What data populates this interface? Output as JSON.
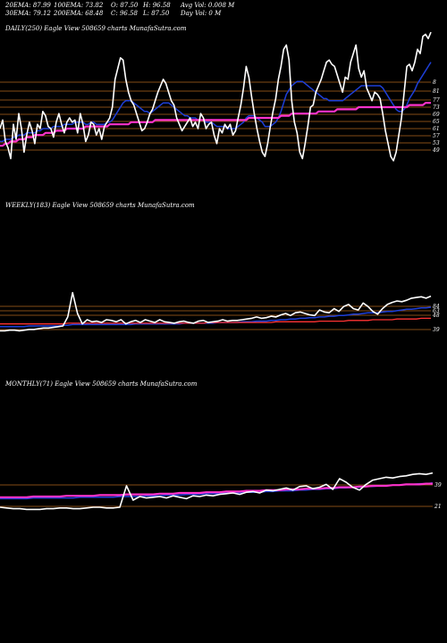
{
  "header": {
    "row1": [
      "20EMA: 87.99",
      "100EMA: 73.82",
      "O: 87.50",
      "H: 96.58",
      "Avg Vol: 0.008 M"
    ],
    "row2": [
      "30EMA: 79.12",
      "200EMA: 68.48",
      "C: 96.58",
      "L: 87.50",
      "Day Vol: 0  M"
    ]
  },
  "colors": {
    "background": "#000000",
    "price": "#ffffff",
    "ema_blue": "#1e3fd8",
    "ema_pink": "#ff33cc",
    "ema_red": "#ff3333",
    "grid": "#b0641e"
  },
  "chart_data": [
    {
      "type": "line",
      "title": "DAILY(250) Eagle  View  508659 charts MunafaSutra.com",
      "y_tick_labels": [
        "8",
        "81",
        "77",
        "73",
        "69",
        "65",
        "61",
        "57",
        "53",
        "49"
      ],
      "grid": true,
      "series": [
        {
          "role": "price",
          "values": [
            55,
            59,
            49,
            46,
            41,
            57,
            50,
            62,
            55,
            44,
            52,
            58,
            54,
            48,
            57,
            55,
            63,
            61,
            56,
            55,
            51,
            58,
            62,
            57,
            53,
            58,
            60,
            58,
            59,
            53,
            62,
            57,
            49,
            52,
            58,
            57,
            52,
            55,
            50,
            56,
            58,
            60,
            65,
            78,
            83,
            88,
            87,
            78,
            72,
            68,
            66,
            62,
            58,
            54,
            55,
            58,
            62,
            64,
            68,
            72,
            75,
            78,
            76,
            72,
            68,
            66,
            60,
            57,
            54,
            56,
            58,
            60,
            56,
            58,
            55,
            62,
            60,
            55,
            57,
            58,
            52,
            48,
            55,
            53,
            57,
            55,
            57,
            52,
            54,
            60,
            66,
            74,
            84,
            79,
            70,
            62,
            55,
            49,
            44,
            42,
            48,
            56,
            63,
            69,
            78,
            84,
            92,
            94,
            87,
            68,
            58,
            53,
            44,
            41,
            48,
            56,
            65,
            66,
            72,
            75,
            78,
            82,
            86,
            87,
            85,
            84,
            80,
            76,
            72,
            79,
            78,
            86,
            90,
            94,
            83,
            79,
            82,
            74,
            71,
            68,
            72,
            71,
            69,
            62,
            54,
            48,
            42,
            40,
            44,
            52,
            60,
            72,
            84,
            85,
            82,
            86,
            92,
            90,
            98,
            99,
            97,
            100
          ]
        },
        {
          "role": "ema-blue",
          "values": [
            49,
            49,
            50,
            50,
            50,
            51,
            51,
            52,
            52,
            52,
            53,
            53,
            53,
            53,
            54,
            54,
            55,
            55,
            55,
            55,
            56,
            56,
            56,
            56,
            57,
            57,
            57,
            57,
            58,
            58,
            58,
            58,
            57,
            57,
            58,
            58,
            57,
            57,
            57,
            57,
            58,
            58,
            59,
            61,
            63,
            65,
            67,
            68,
            68,
            68,
            67,
            66,
            65,
            64,
            63,
            63,
            62,
            63,
            64,
            65,
            66,
            67,
            67,
            67,
            66,
            65,
            64,
            63,
            62,
            61,
            61,
            60,
            60,
            60,
            59,
            59,
            59,
            58,
            58,
            58,
            57,
            56,
            56,
            56,
            56,
            55,
            55,
            55,
            55,
            56,
            57,
            58,
            60,
            61,
            61,
            61,
            60,
            59,
            58,
            56,
            56,
            56,
            57,
            58,
            60,
            63,
            67,
            71,
            73,
            75,
            76,
            77,
            77,
            77,
            76,
            75,
            74,
            73,
            72,
            71,
            70,
            69,
            69,
            68,
            68,
            68,
            68,
            68,
            68,
            69,
            70,
            71,
            72,
            73,
            74,
            75,
            75,
            75,
            75,
            75,
            75,
            75,
            75,
            74,
            72,
            70,
            68,
            66,
            64,
            63,
            63,
            64,
            66,
            69,
            71,
            73,
            76,
            78,
            80,
            82,
            84,
            86
          ]
        },
        {
          "role": "ema-pink",
          "values": [
            47,
            47,
            48,
            48,
            49,
            49,
            49,
            50,
            50,
            50,
            51,
            51,
            51,
            52,
            52,
            52,
            52,
            53,
            53,
            53,
            53,
            54,
            54,
            54,
            54,
            55,
            55,
            55,
            55,
            55,
            55,
            55,
            56,
            56,
            56,
            56,
            56,
            56,
            56,
            56,
            56,
            57,
            57,
            57,
            57,
            57,
            57,
            57,
            57,
            58,
            58,
            58,
            58,
            58,
            58,
            58,
            58,
            58,
            59,
            59,
            59,
            59,
            59,
            59,
            59,
            59,
            59,
            59,
            59,
            59,
            59,
            59,
            59,
            59,
            59,
            59,
            59,
            59,
            59,
            59,
            59,
            59,
            59,
            59,
            59,
            59,
            59,
            59,
            59,
            59,
            59,
            59,
            59,
            60,
            60,
            60,
            60,
            60,
            60,
            60,
            60,
            60,
            60,
            60,
            60,
            61,
            61,
            61,
            61,
            62,
            62,
            62,
            62,
            62,
            62,
            62,
            62,
            62,
            62,
            63,
            63,
            63,
            63,
            63,
            63,
            63,
            64,
            64,
            64,
            64,
            64,
            64,
            64,
            64,
            65,
            65,
            65,
            65,
            65,
            65,
            65,
            65,
            65,
            65,
            65,
            65,
            65,
            65,
            65,
            65,
            65,
            65,
            65,
            66,
            66,
            66,
            66,
            66,
            66,
            67,
            67,
            67
          ]
        }
      ]
    },
    {
      "type": "line",
      "title": "WEEKLY(183) Eagle  View  508659 charts MunafaSutra.com",
      "y_tick_labels": [
        "84",
        "63",
        "48",
        "39"
      ],
      "grid": true,
      "series": [
        {
          "role": "price",
          "values": [
            20,
            20,
            21,
            21,
            20,
            21,
            22,
            22,
            23,
            24,
            24,
            25,
            26,
            27,
            40,
            75,
            45,
            30,
            36,
            33,
            34,
            32,
            36,
            35,
            33,
            36,
            30,
            33,
            35,
            32,
            36,
            34,
            32,
            36,
            33,
            32,
            31,
            33,
            34,
            32,
            31,
            34,
            35,
            32,
            33,
            34,
            36,
            34,
            35,
            35,
            36,
            37,
            38,
            40,
            38,
            39,
            41,
            40,
            43,
            45,
            42,
            46,
            47,
            45,
            43,
            42,
            50,
            47,
            46,
            52,
            48,
            55,
            58,
            52,
            50,
            60,
            55,
            48,
            44,
            52,
            58,
            61,
            63,
            62,
            64,
            67,
            68,
            69,
            67,
            70
          ]
        },
        {
          "role": "ema-blue",
          "values": [
            26,
            26,
            26,
            26,
            26,
            26,
            27,
            27,
            27,
            27,
            27,
            27,
            27,
            28,
            28,
            29,
            29,
            29,
            29,
            29,
            29,
            29,
            29,
            29,
            29,
            29,
            29,
            29,
            30,
            30,
            30,
            30,
            30,
            30,
            30,
            30,
            30,
            30,
            31,
            31,
            31,
            31,
            31,
            31,
            31,
            32,
            32,
            32,
            32,
            32,
            33,
            33,
            33,
            34,
            34,
            34,
            35,
            35,
            36,
            36,
            37,
            37,
            38,
            38,
            39,
            39,
            40,
            40,
            41,
            41,
            42,
            42,
            43,
            44,
            44,
            45,
            46,
            46,
            46,
            47,
            48,
            48,
            49,
            50,
            51,
            51,
            52,
            53,
            53,
            54
          ]
        },
        {
          "role": "ema-red",
          "values": [
            30,
            30,
            30,
            30,
            30,
            30,
            30,
            30,
            30,
            30,
            30,
            30,
            30,
            30,
            31,
            31,
            31,
            31,
            31,
            31,
            31,
            31,
            31,
            31,
            31,
            31,
            31,
            31,
            31,
            31,
            31,
            31,
            31,
            31,
            31,
            31,
            31,
            31,
            31,
            31,
            31,
            31,
            31,
            32,
            32,
            32,
            32,
            32,
            32,
            32,
            32,
            32,
            32,
            32,
            32,
            32,
            32,
            33,
            33,
            33,
            33,
            33,
            33,
            33,
            33,
            33,
            34,
            34,
            34,
            34,
            34,
            34,
            35,
            35,
            35,
            35,
            35,
            36,
            36,
            36,
            36,
            36,
            37,
            37,
            37,
            37,
            37,
            38,
            38,
            38
          ]
        }
      ]
    },
    {
      "type": "line",
      "title": "MONTHLY(71) Eagle  View  508659 charts MunafaSutra.com",
      "y_tick_labels": [
        "39",
        "21"
      ],
      "grid": true,
      "series": [
        {
          "role": "price",
          "values": [
            20,
            19,
            18,
            18,
            17,
            17,
            17,
            18,
            18,
            19,
            19,
            18,
            18,
            19,
            20,
            20,
            19,
            19,
            20,
            50,
            30,
            35,
            33,
            34,
            35,
            33,
            36,
            34,
            32,
            36,
            35,
            37,
            36,
            38,
            39,
            40,
            38,
            41,
            42,
            40,
            44,
            43,
            45,
            47,
            44,
            49,
            50,
            46,
            48,
            52,
            45,
            60,
            55,
            48,
            44,
            52,
            58,
            60,
            62,
            61,
            63,
            64,
            66,
            67,
            66,
            68
          ]
        },
        {
          "role": "ema-blue",
          "values": [
            32,
            32,
            32,
            32,
            32,
            33,
            33,
            33,
            33,
            33,
            33,
            33,
            34,
            34,
            34,
            34,
            34,
            34,
            35,
            35,
            35,
            35,
            36,
            36,
            36,
            37,
            37,
            37,
            38,
            38,
            38,
            39,
            39,
            39,
            40,
            40,
            40,
            41,
            41,
            41,
            42,
            42,
            43,
            43,
            43,
            44,
            44,
            45,
            45,
            46,
            46,
            47,
            47,
            48,
            48,
            49,
            49,
            50,
            50,
            51,
            51,
            52,
            52,
            53,
            53,
            54
          ]
        },
        {
          "role": "ema-pink",
          "values": [
            34,
            34,
            34,
            34,
            34,
            35,
            35,
            35,
            35,
            35,
            36,
            36,
            36,
            36,
            36,
            37,
            37,
            37,
            37,
            38,
            38,
            38,
            38,
            38,
            39,
            39,
            39,
            40,
            40,
            40,
            40,
            41,
            41,
            41,
            42,
            42,
            42,
            43,
            43,
            43,
            44,
            44,
            44,
            45,
            45,
            45,
            46,
            46,
            46,
            47,
            47,
            48,
            48,
            48,
            49,
            49,
            50,
            50,
            50,
            51,
            51,
            52,
            52,
            52,
            53,
            53
          ]
        }
      ]
    }
  ]
}
